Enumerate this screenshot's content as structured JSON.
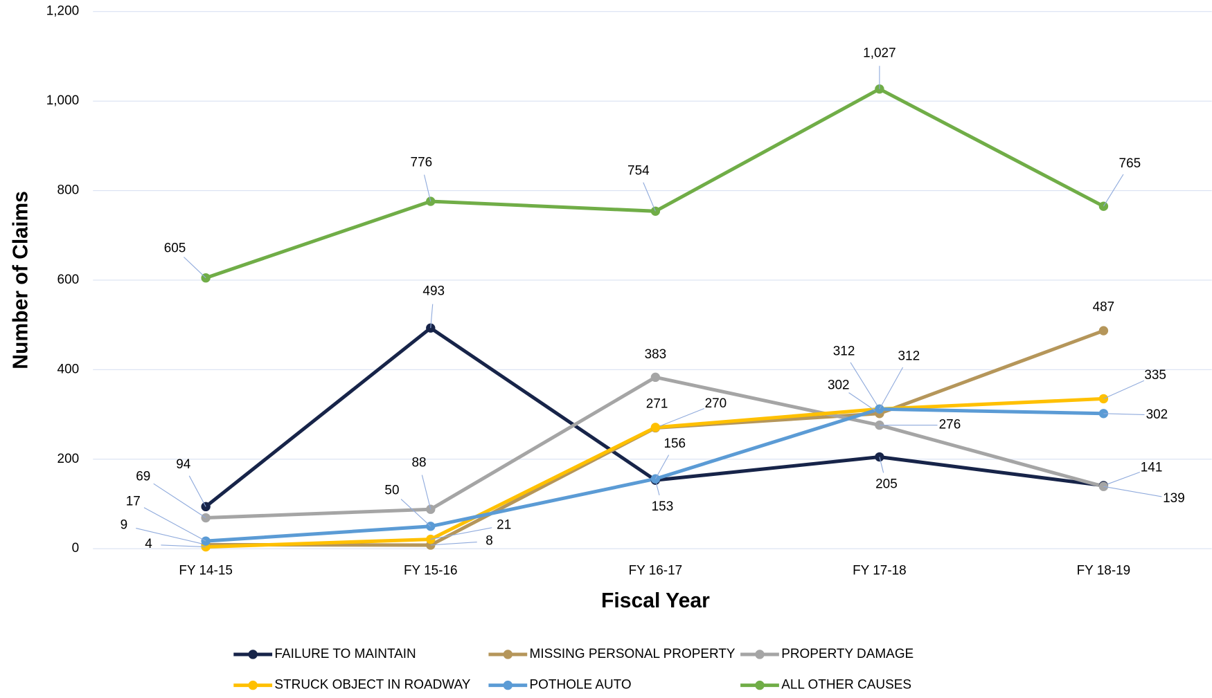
{
  "chart_data": {
    "type": "line",
    "x_label": "Fiscal Year",
    "y_label": "Number of Claims",
    "categories": [
      "FY 14-15",
      "FY 15-16",
      "FY 16-17",
      "FY 17-18",
      "FY 18-19"
    ],
    "ylim": [
      0,
      1200
    ],
    "yticks": [
      0,
      200,
      400,
      600,
      800,
      {
        "value": 1000,
        "label": "1,000"
      },
      {
        "value": 1200,
        "label": "1,200"
      }
    ],
    "grid": true,
    "legend": "bottom",
    "series": [
      {
        "name": "FAILURE TO MAINTAIN",
        "color": "#172449",
        "values": [
          94,
          493,
          153,
          205,
          141
        ]
      },
      {
        "name": "MISSING PERSONAL PROPERTY",
        "color": "#b5965a",
        "values": [
          9,
          8,
          270,
          302,
          487
        ]
      },
      {
        "name": "PROPERTY DAMAGE",
        "color": "#a5a5a5",
        "values": [
          69,
          88,
          383,
          276,
          139
        ]
      },
      {
        "name": "STRUCK OBJECT IN ROADWAY",
        "color": "#ffc000",
        "values": [
          4,
          21,
          271,
          312,
          335
        ]
      },
      {
        "name": "POTHOLE AUTO",
        "color": "#5b9bd5",
        "values": [
          17,
          50,
          156,
          312,
          302
        ]
      },
      {
        "name": "ALL OTHER CAUSES",
        "color": "#70ad47",
        "values": [
          605,
          776,
          754,
          1027,
          765
        ],
        "value_labels": [
          "605",
          "776",
          "754",
          "1,027",
          "765"
        ]
      }
    ]
  }
}
